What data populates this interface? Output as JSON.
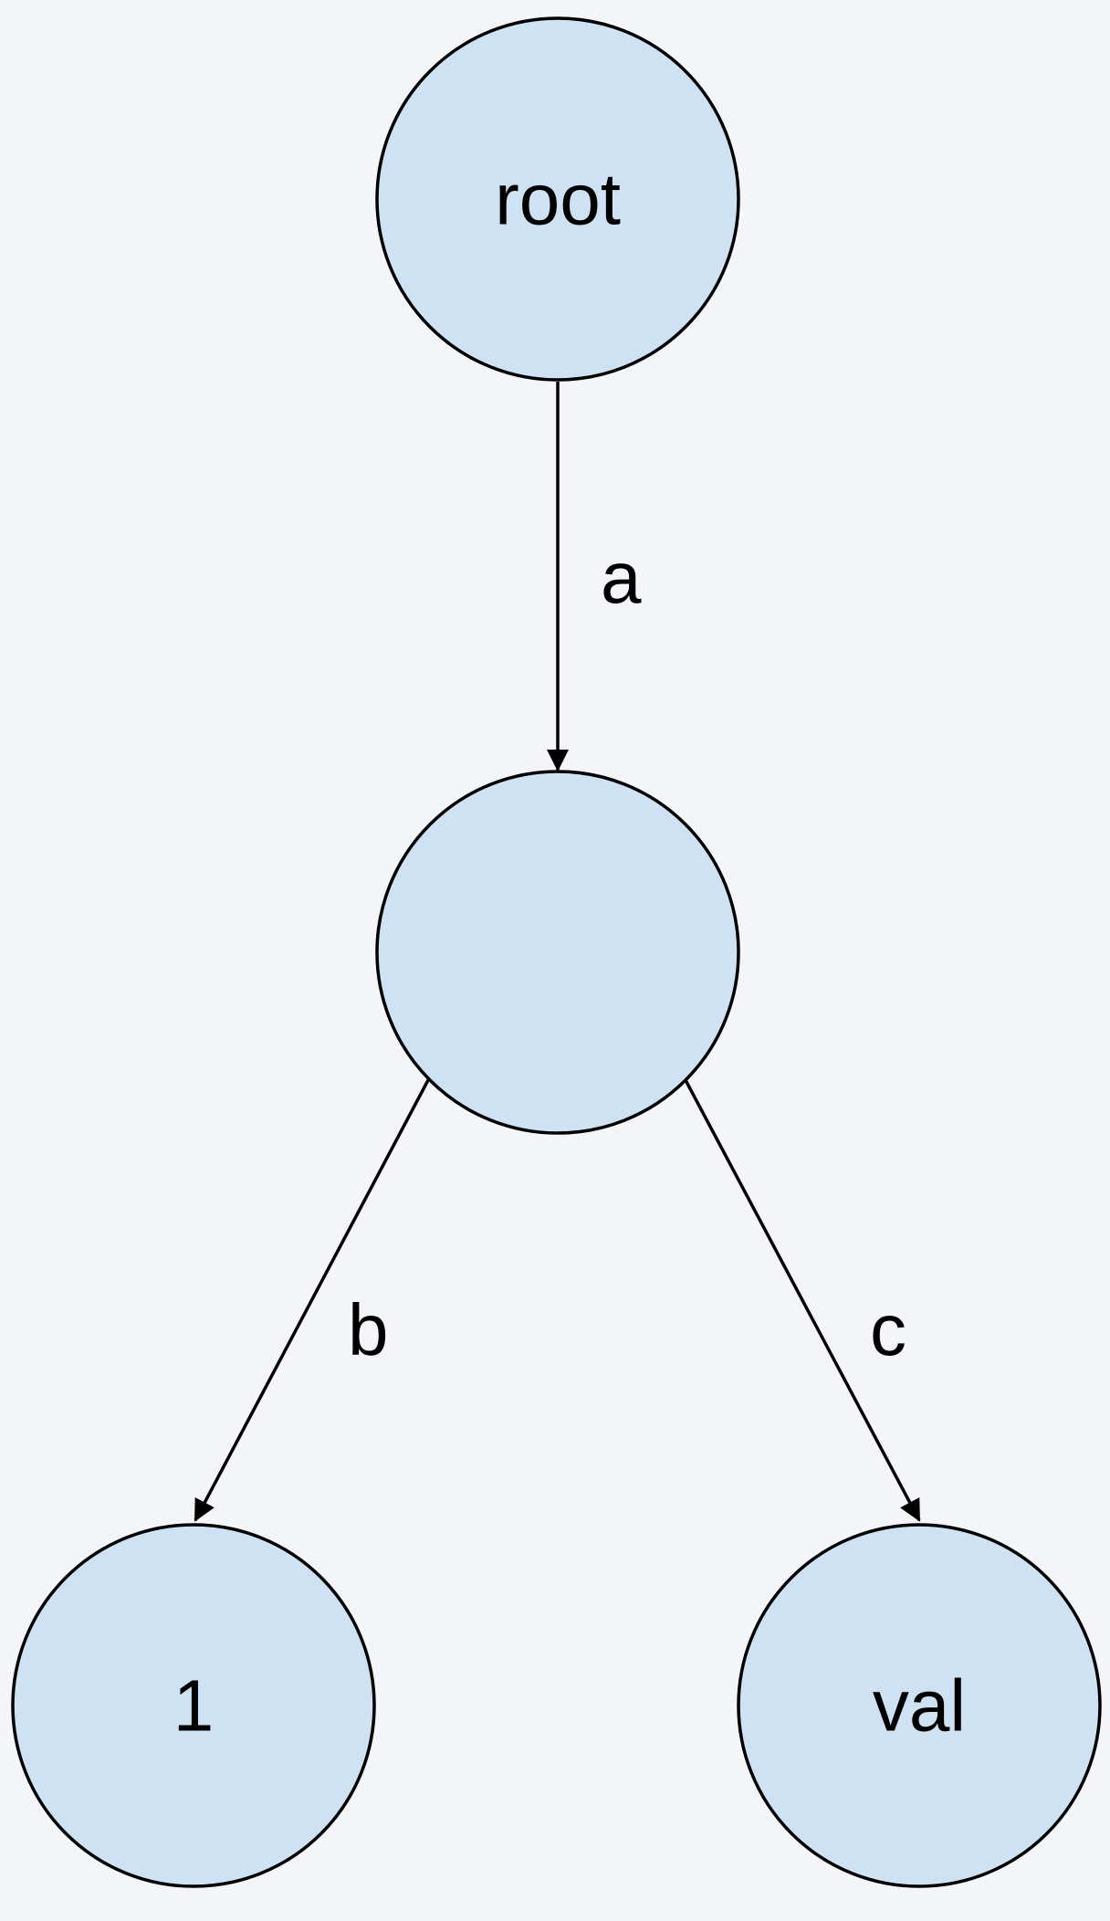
{
  "diagram": {
    "type": "tree",
    "nodes": [
      {
        "id": "n_root",
        "label": "root"
      },
      {
        "id": "n_mid",
        "label": ""
      },
      {
        "id": "n_one",
        "label": "1"
      },
      {
        "id": "n_val",
        "label": "val"
      }
    ],
    "edges": [
      {
        "from": "n_root",
        "to": "n_mid",
        "label": "a"
      },
      {
        "from": "n_mid",
        "to": "n_one",
        "label": "b"
      },
      {
        "from": "n_mid",
        "to": "n_val",
        "label": "c"
      }
    ],
    "colors": {
      "node_fill": "#cfe2f3",
      "stroke": "#000000",
      "background": "#f3f5f8"
    }
  }
}
